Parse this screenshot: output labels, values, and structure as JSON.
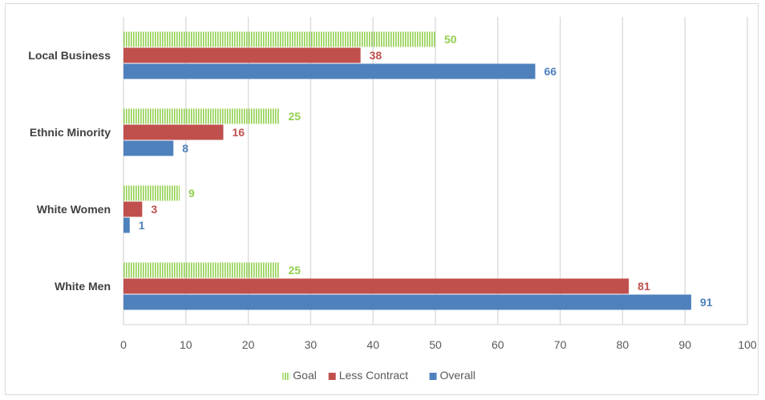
{
  "chart_data": {
    "type": "bar",
    "orientation": "horizontal",
    "categories": [
      "Local Business",
      "Ethnic Minority",
      "White Women",
      "White Men"
    ],
    "series": [
      {
        "name": "Goal",
        "values": [
          50,
          25,
          9,
          25
        ],
        "color": "#92D050",
        "pattern": "vertical-stripes",
        "label_bold": false
      },
      {
        "name": "Less Contract",
        "values": [
          38,
          16,
          3,
          81
        ],
        "color": "#C0504D",
        "label_bold": true
      },
      {
        "name": "Overall",
        "values": [
          66,
          8,
          1,
          91
        ],
        "color": "#4F81BD",
        "label_bold": true
      }
    ],
    "xlim": [
      0,
      100
    ],
    "xticks": [
      0,
      10,
      20,
      30,
      40,
      50,
      60,
      70,
      80,
      90,
      100
    ],
    "grid": true,
    "legend": "bottom",
    "title": "",
    "xlabel": "",
    "ylabel": ""
  }
}
